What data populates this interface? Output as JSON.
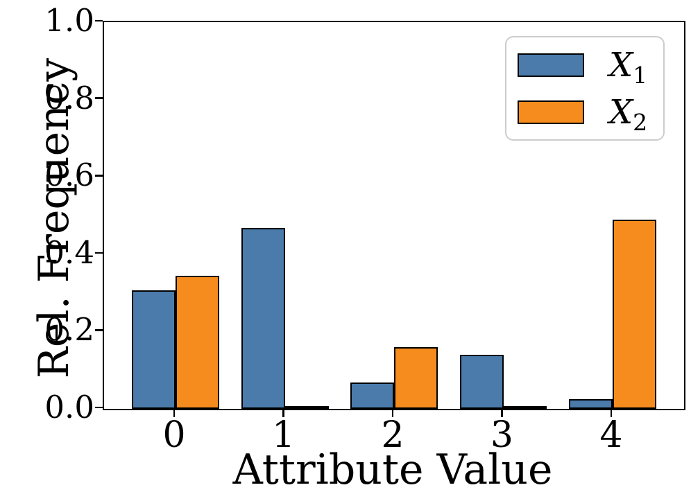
{
  "chart_data": {
    "type": "bar",
    "title": "",
    "xlabel": "Attribute Value",
    "ylabel": "Rel. Frequency",
    "categories": [
      "0",
      "1",
      "2",
      "3",
      "4"
    ],
    "series": [
      {
        "name": "X_1",
        "label_base": "X",
        "label_sub": "1",
        "color": "#4A7BAB",
        "values": [
          0.306,
          0.467,
          0.069,
          0.139,
          0.025
        ]
      },
      {
        "name": "X_2",
        "label_base": "X",
        "label_sub": "2",
        "color": "#F68C1E",
        "values": [
          0.344,
          0.008,
          0.16,
          0.006,
          0.49
        ]
      }
    ],
    "bar_edge_color": "#000000",
    "bar_width_data_units": 0.4,
    "xlim": [
      -0.655,
      4.655
    ],
    "ylim": [
      0,
      1
    ],
    "yticks": [
      "0.0",
      "0.2",
      "0.4",
      "0.6",
      "0.8",
      "1.0"
    ],
    "xticks": [
      "0",
      "1",
      "2",
      "3",
      "4"
    ],
    "grid": false,
    "legend_position": "upper right",
    "legend_border_color": "#CCCCCC"
  }
}
